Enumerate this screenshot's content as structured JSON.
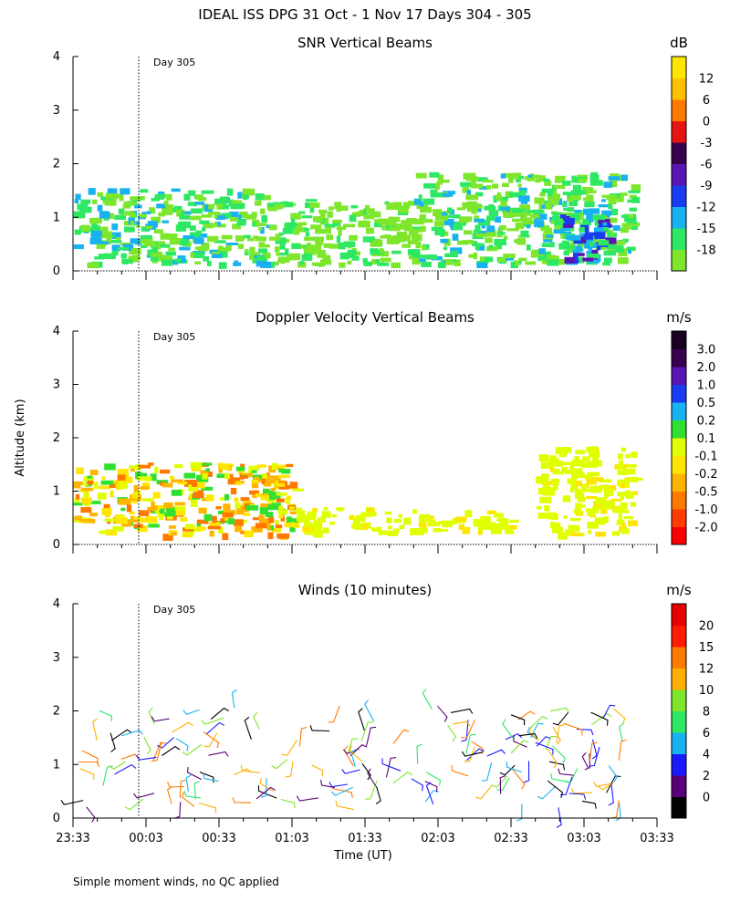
{
  "figure": {
    "title": "IDEAL ISS DPG  31 Oct -  1 Nov 17 Days 304 - 305",
    "ylabel": "Altitude (km)",
    "xlabel": "Time (UT)",
    "footnote": "Simple moment winds, no QC applied",
    "day_marker": "Day 305"
  },
  "chart_data": [
    {
      "type": "heatmap",
      "title": "SNR Vertical Beams",
      "ylim": [
        0,
        4
      ],
      "yticks": [
        "0",
        "1",
        "2",
        "3",
        "4"
      ],
      "xticks": [],
      "xlim": [
        "23:33",
        "03:33"
      ],
      "colorbar": {
        "unit": "dB",
        "labels": [
          "-18",
          "-15",
          "-12",
          "-9",
          "-6",
          "-3",
          "0",
          "6",
          "12"
        ],
        "colors": [
          "#7ee62b",
          "#2ee864",
          "#19b2f0",
          "#1a3cf0",
          "#5a14b4",
          "#3a0050",
          "#e81414",
          "#ff7a00",
          "#ffc000",
          "#ffe600"
        ]
      },
      "regions": [
        {
          "t0": "23:33",
          "t1": "00:53",
          "z0": 0.15,
          "z1": 1.55,
          "c": "mixed"
        },
        {
          "t0": "00:53",
          "t1": "01:53",
          "z0": 0.15,
          "z1": 1.35,
          "c": "low"
        },
        {
          "t0": "01:53",
          "t1": "03:23",
          "z0": 0.15,
          "z1": 1.85,
          "c": "mixed"
        },
        {
          "t0": "02:53",
          "t1": "03:13",
          "z0": 0.2,
          "z1": 1.2,
          "c": "high"
        }
      ]
    },
    {
      "type": "heatmap",
      "title": "Doppler Velocity Vertical Beams",
      "ylim": [
        0,
        4
      ],
      "yticks": [
        "0",
        "1",
        "2",
        "3",
        "4"
      ],
      "xticks": [],
      "xlim": [
        "23:33",
        "03:33"
      ],
      "colorbar": {
        "unit": "m/s",
        "labels": [
          "-2.0",
          "-1.0",
          "-0.5",
          "-0.2",
          "-0.1",
          "0.1",
          "0.2",
          "0.5",
          "1.0",
          "2.0",
          "3.0"
        ],
        "colors": [
          "#ff0000",
          "#ff3c00",
          "#ff7800",
          "#ffb400",
          "#ffe600",
          "#e0ff00",
          "#30e030",
          "#19b2f0",
          "#1a3cf0",
          "#5a14b4",
          "#3a0050",
          "#1a0020"
        ]
      },
      "regions": [
        {
          "t0": "23:33",
          "t1": "01:03",
          "z0": 0.2,
          "z1": 1.55,
          "c": "mixed"
        },
        {
          "t0": "01:03",
          "t1": "02:33",
          "z0": 0.25,
          "z1": 0.7,
          "c": "yellow"
        },
        {
          "t0": "02:43",
          "t1": "03:23",
          "z0": 0.2,
          "z1": 1.85,
          "c": "yellow"
        }
      ]
    },
    {
      "type": "scatter",
      "title": "Winds (10 minutes)",
      "ylim": [
        0,
        4
      ],
      "yticks": [
        "0",
        "1",
        "2",
        "3",
        "4"
      ],
      "xticks": [
        "23:33",
        "00:03",
        "00:33",
        "01:03",
        "01:33",
        "02:03",
        "02:33",
        "03:03",
        "03:33"
      ],
      "xlim": [
        "23:33",
        "03:33"
      ],
      "colorbar": {
        "unit": "m/s",
        "labels": [
          "0",
          "2",
          "4",
          "6",
          "8",
          "10",
          "12",
          "15",
          "20"
        ],
        "colors": [
          "#000000",
          "#5a0078",
          "#1a1aff",
          "#19b2f0",
          "#2ee864",
          "#7ee62b",
          "#ffb000",
          "#ff7a00",
          "#ff1a00",
          "#e80000"
        ]
      },
      "wind_barbs": "10-minute wind barbs, altitude 0.1-2.1 km, speeds 0-20 m/s"
    }
  ]
}
